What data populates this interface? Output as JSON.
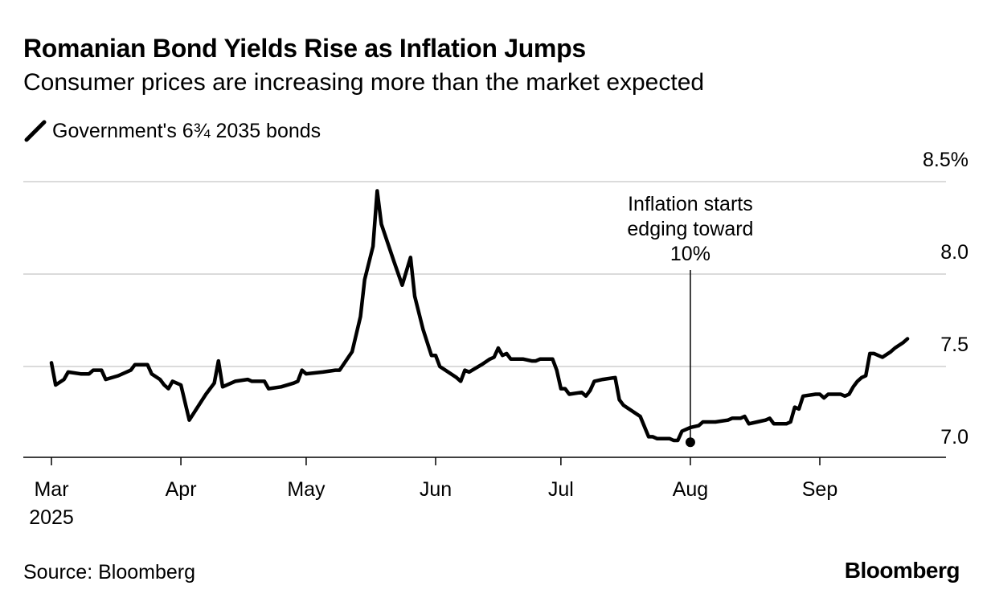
{
  "header": {
    "title": "Romanian Bond Yields Rise as Inflation Jumps",
    "subtitle": "Consumer prices are increasing more than the market expected"
  },
  "footer": {
    "source": "Source: Bloomberg",
    "brand": "Bloomberg"
  },
  "chart_data": {
    "type": "line",
    "title": "Romanian Bond Yields Rise as Inflation Jumps",
    "subtitle": "Consumer prices are increasing more than the market expected",
    "xlabel": "",
    "ylabel": "",
    "x_range": [
      "2025-02-27",
      "2025-09-30"
    ],
    "ylim": [
      7.0,
      8.5
    ],
    "y_ticks": [
      7.0,
      7.5,
      8.0,
      8.5
    ],
    "y_tick_labels": [
      "7.0",
      "7.5",
      "8.0",
      "8.5%"
    ],
    "y_axis_position": "right",
    "grid": true,
    "legend_position": "top-left",
    "x_ticks": [
      {
        "date": "2025-03-01",
        "label": "Mar",
        "sublabel": "2025"
      },
      {
        "date": "2025-04-01",
        "label": "Apr",
        "sublabel": ""
      },
      {
        "date": "2025-05-01",
        "label": "May",
        "sublabel": ""
      },
      {
        "date": "2025-06-01",
        "label": "Jun",
        "sublabel": ""
      },
      {
        "date": "2025-07-01",
        "label": "Jul",
        "sublabel": ""
      },
      {
        "date": "2025-08-01",
        "label": "Aug",
        "sublabel": ""
      },
      {
        "date": "2025-09-01",
        "label": "Sep",
        "sublabel": ""
      }
    ],
    "annotation": {
      "lines": [
        "Inflation starts",
        "edging toward",
        "10%"
      ],
      "date": "2025-08-01",
      "value": 7.09
    },
    "series": [
      {
        "name": "Government's 6¾ 2035 bonds",
        "color": "#000000",
        "points": [
          [
            "2025-03-01",
            7.52
          ],
          [
            "2025-03-02",
            7.4
          ],
          [
            "2025-03-04",
            7.43
          ],
          [
            "2025-03-05",
            7.47
          ],
          [
            "2025-03-08",
            7.46
          ],
          [
            "2025-03-10",
            7.46
          ],
          [
            "2025-03-11",
            7.48
          ],
          [
            "2025-03-12",
            7.48
          ],
          [
            "2025-03-13",
            7.48
          ],
          [
            "2025-03-14",
            7.43
          ],
          [
            "2025-03-17",
            7.45
          ],
          [
            "2025-03-20",
            7.48
          ],
          [
            "2025-03-21",
            7.51
          ],
          [
            "2025-03-24",
            7.51
          ],
          [
            "2025-03-25",
            7.46
          ],
          [
            "2025-03-27",
            7.43
          ],
          [
            "2025-03-28",
            7.4
          ],
          [
            "2025-03-29",
            7.38
          ],
          [
            "2025-03-30",
            7.42
          ],
          [
            "2025-04-01",
            7.4
          ],
          [
            "2025-04-03",
            7.21
          ],
          [
            "2025-04-07",
            7.35
          ],
          [
            "2025-04-09",
            7.41
          ],
          [
            "2025-04-10",
            7.53
          ],
          [
            "2025-04-11",
            7.39
          ],
          [
            "2025-04-14",
            7.42
          ],
          [
            "2025-04-17",
            7.43
          ],
          [
            "2025-04-18",
            7.42
          ],
          [
            "2025-04-21",
            7.42
          ],
          [
            "2025-04-22",
            7.38
          ],
          [
            "2025-04-25",
            7.39
          ],
          [
            "2025-04-28",
            7.41
          ],
          [
            "2025-04-29",
            7.42
          ],
          [
            "2025-04-30",
            7.48
          ],
          [
            "2025-05-01",
            7.46
          ],
          [
            "2025-05-05",
            7.47
          ],
          [
            "2025-05-08",
            7.48
          ],
          [
            "2025-05-09",
            7.48
          ],
          [
            "2025-05-12",
            7.58
          ],
          [
            "2025-05-14",
            7.77
          ],
          [
            "2025-05-15",
            7.97
          ],
          [
            "2025-05-17",
            8.15
          ],
          [
            "2025-05-18",
            8.45
          ],
          [
            "2025-05-19",
            8.27
          ],
          [
            "2025-05-22",
            8.07
          ],
          [
            "2025-05-24",
            7.94
          ],
          [
            "2025-05-26",
            8.09
          ],
          [
            "2025-05-27",
            7.88
          ],
          [
            "2025-05-29",
            7.7
          ],
          [
            "2025-05-31",
            7.56
          ],
          [
            "2025-06-01",
            7.56
          ],
          [
            "2025-06-02",
            7.5
          ],
          [
            "2025-06-06",
            7.44
          ],
          [
            "2025-06-07",
            7.42
          ],
          [
            "2025-06-08",
            7.48
          ],
          [
            "2025-06-09",
            7.47
          ],
          [
            "2025-06-12",
            7.51
          ],
          [
            "2025-06-14",
            7.54
          ],
          [
            "2025-06-15",
            7.55
          ],
          [
            "2025-06-16",
            7.6
          ],
          [
            "2025-06-17",
            7.56
          ],
          [
            "2025-06-18",
            7.57
          ],
          [
            "2025-06-19",
            7.54
          ],
          [
            "2025-06-22",
            7.54
          ],
          [
            "2025-06-24",
            7.53
          ],
          [
            "2025-06-25",
            7.53
          ],
          [
            "2025-06-26",
            7.54
          ],
          [
            "2025-06-29",
            7.54
          ],
          [
            "2025-06-30",
            7.48
          ],
          [
            "2025-07-01",
            7.38
          ],
          [
            "2025-07-02",
            7.38
          ],
          [
            "2025-07-03",
            7.35
          ],
          [
            "2025-07-06",
            7.36
          ],
          [
            "2025-07-07",
            7.34
          ],
          [
            "2025-07-08",
            7.37
          ],
          [
            "2025-07-09",
            7.42
          ],
          [
            "2025-07-11",
            7.43
          ],
          [
            "2025-07-14",
            7.44
          ],
          [
            "2025-07-15",
            7.32
          ],
          [
            "2025-07-16",
            7.29
          ],
          [
            "2025-07-20",
            7.23
          ],
          [
            "2025-07-22",
            7.12
          ],
          [
            "2025-07-23",
            7.12
          ],
          [
            "2025-07-24",
            7.11
          ],
          [
            "2025-07-27",
            7.11
          ],
          [
            "2025-07-28",
            7.1
          ],
          [
            "2025-07-29",
            7.1
          ],
          [
            "2025-07-30",
            7.15
          ],
          [
            "2025-07-31",
            7.16
          ],
          [
            "2025-08-01",
            7.17
          ],
          [
            "2025-08-03",
            7.18
          ],
          [
            "2025-08-04",
            7.2
          ],
          [
            "2025-08-07",
            7.2
          ],
          [
            "2025-08-10",
            7.21
          ],
          [
            "2025-08-11",
            7.22
          ],
          [
            "2025-08-13",
            7.22
          ],
          [
            "2025-08-14",
            7.23
          ],
          [
            "2025-08-15",
            7.19
          ],
          [
            "2025-08-17",
            7.2
          ],
          [
            "2025-08-19",
            7.21
          ],
          [
            "2025-08-20",
            7.22
          ],
          [
            "2025-08-21",
            7.19
          ],
          [
            "2025-08-24",
            7.19
          ],
          [
            "2025-08-25",
            7.2
          ],
          [
            "2025-08-26",
            7.28
          ],
          [
            "2025-08-27",
            7.27
          ],
          [
            "2025-08-28",
            7.34
          ],
          [
            "2025-08-31",
            7.35
          ],
          [
            "2025-09-01",
            7.35
          ],
          [
            "2025-09-02",
            7.33
          ],
          [
            "2025-09-03",
            7.35
          ],
          [
            "2025-09-06",
            7.35
          ],
          [
            "2025-09-07",
            7.34
          ],
          [
            "2025-09-08",
            7.35
          ],
          [
            "2025-09-09",
            7.39
          ],
          [
            "2025-09-10",
            7.42
          ],
          [
            "2025-09-11",
            7.44
          ],
          [
            "2025-09-12",
            7.45
          ],
          [
            "2025-09-13",
            7.57
          ],
          [
            "2025-09-14",
            7.57
          ],
          [
            "2025-09-16",
            7.55
          ],
          [
            "2025-09-18",
            7.58
          ],
          [
            "2025-09-19",
            7.6
          ],
          [
            "2025-09-21",
            7.63
          ],
          [
            "2025-09-22",
            7.65
          ]
        ]
      }
    ]
  }
}
